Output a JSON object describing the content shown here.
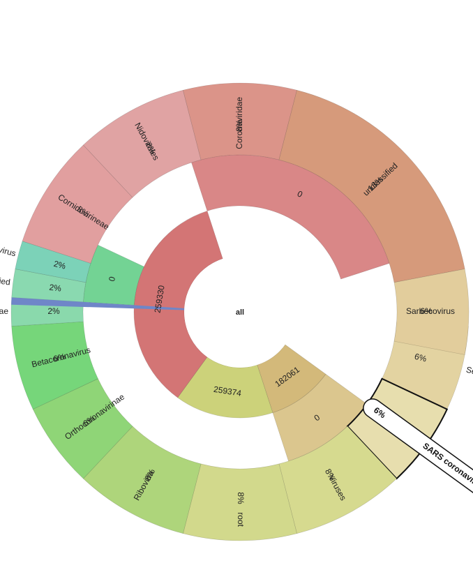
{
  "chart_data": {
    "type": "sunburst",
    "center_label": "all",
    "units": "%",
    "rings": [
      [
        {
          "label": "182061",
          "start": 9,
          "end": 19,
          "color": "#d3b97a"
        },
        {
          "label": "259374",
          "start": 19,
          "end": 34,
          "color": "#ccd27a"
        },
        {
          "label": "259330",
          "start": 34,
          "end": 69,
          "color": "#d37575"
        }
      ],
      [
        {
          "label": "0",
          "start": 9,
          "end": 19,
          "color": "#dbc68e"
        },
        {
          "label": "0",
          "start": 50,
          "end": 56,
          "color": "#73d394"
        },
        {
          "label": "0",
          "start": 69,
          "end": 94,
          "color": "#d98787"
        }
      ],
      [
        {
          "label": "Severe acute",
          "value": 6,
          "start": 0,
          "end": 6,
          "color": "#e3d3a1",
          "outer_label": true
        },
        {
          "label": "SARS coronavirus",
          "value": 6,
          "start": 6,
          "end": 12,
          "color": "#e7deae",
          "highlighted": true
        },
        {
          "label": "Viruses",
          "value": 8,
          "start": 12,
          "end": 20,
          "color": "#d6da8f"
        },
        {
          "label": "root",
          "value": 8,
          "start": 20,
          "end": 28,
          "color": "#d2d98c"
        },
        {
          "label": "Riboviria",
          "value": 8,
          "start": 28,
          "end": 36,
          "color": "#aed57b"
        },
        {
          "label": "Orthocoronavirinae",
          "value": 6,
          "start": 36,
          "end": 42,
          "color": "#8fd577"
        },
        {
          "label": "Betacoronavirus",
          "value": 6,
          "start": 42,
          "end": 48,
          "color": "#76d67a"
        },
        {
          "label": "Coronavirinae",
          "value": 2,
          "start": 48,
          "end": 50,
          "color": "#8ad9ac"
        },
        {
          "label": "unclassified",
          "value": 2,
          "start": 50,
          "end": 52,
          "color": "#8ad9b0"
        },
        {
          "label": "Bat coronavirus",
          "value": 2,
          "start": 52,
          "end": 54,
          "color": "#7cd2b8"
        },
        {
          "label": "Cornidovirineae",
          "value": 8,
          "start": 54,
          "end": 62,
          "color": "#e19f9f"
        },
        {
          "label": "Nidovirales",
          "value": 8,
          "start": 62,
          "end": 70,
          "color": "#e0a3a3"
        },
        {
          "label": "Coronaviridae",
          "value": 8,
          "start": 70,
          "end": 78,
          "color": "#db9489"
        },
        {
          "label": "unclassified",
          "value": 18,
          "start": 78,
          "end": 96,
          "color": "#d69a7b"
        },
        {
          "label": "Sarbecovirus",
          "value": 6,
          "start": 96,
          "end": 102,
          "color": "#e2cd9c"
        }
      ]
    ],
    "sliver": {
      "start": 49.5,
      "end": 50,
      "color": "#6f86c8"
    },
    "highlight_color": "#111111"
  }
}
